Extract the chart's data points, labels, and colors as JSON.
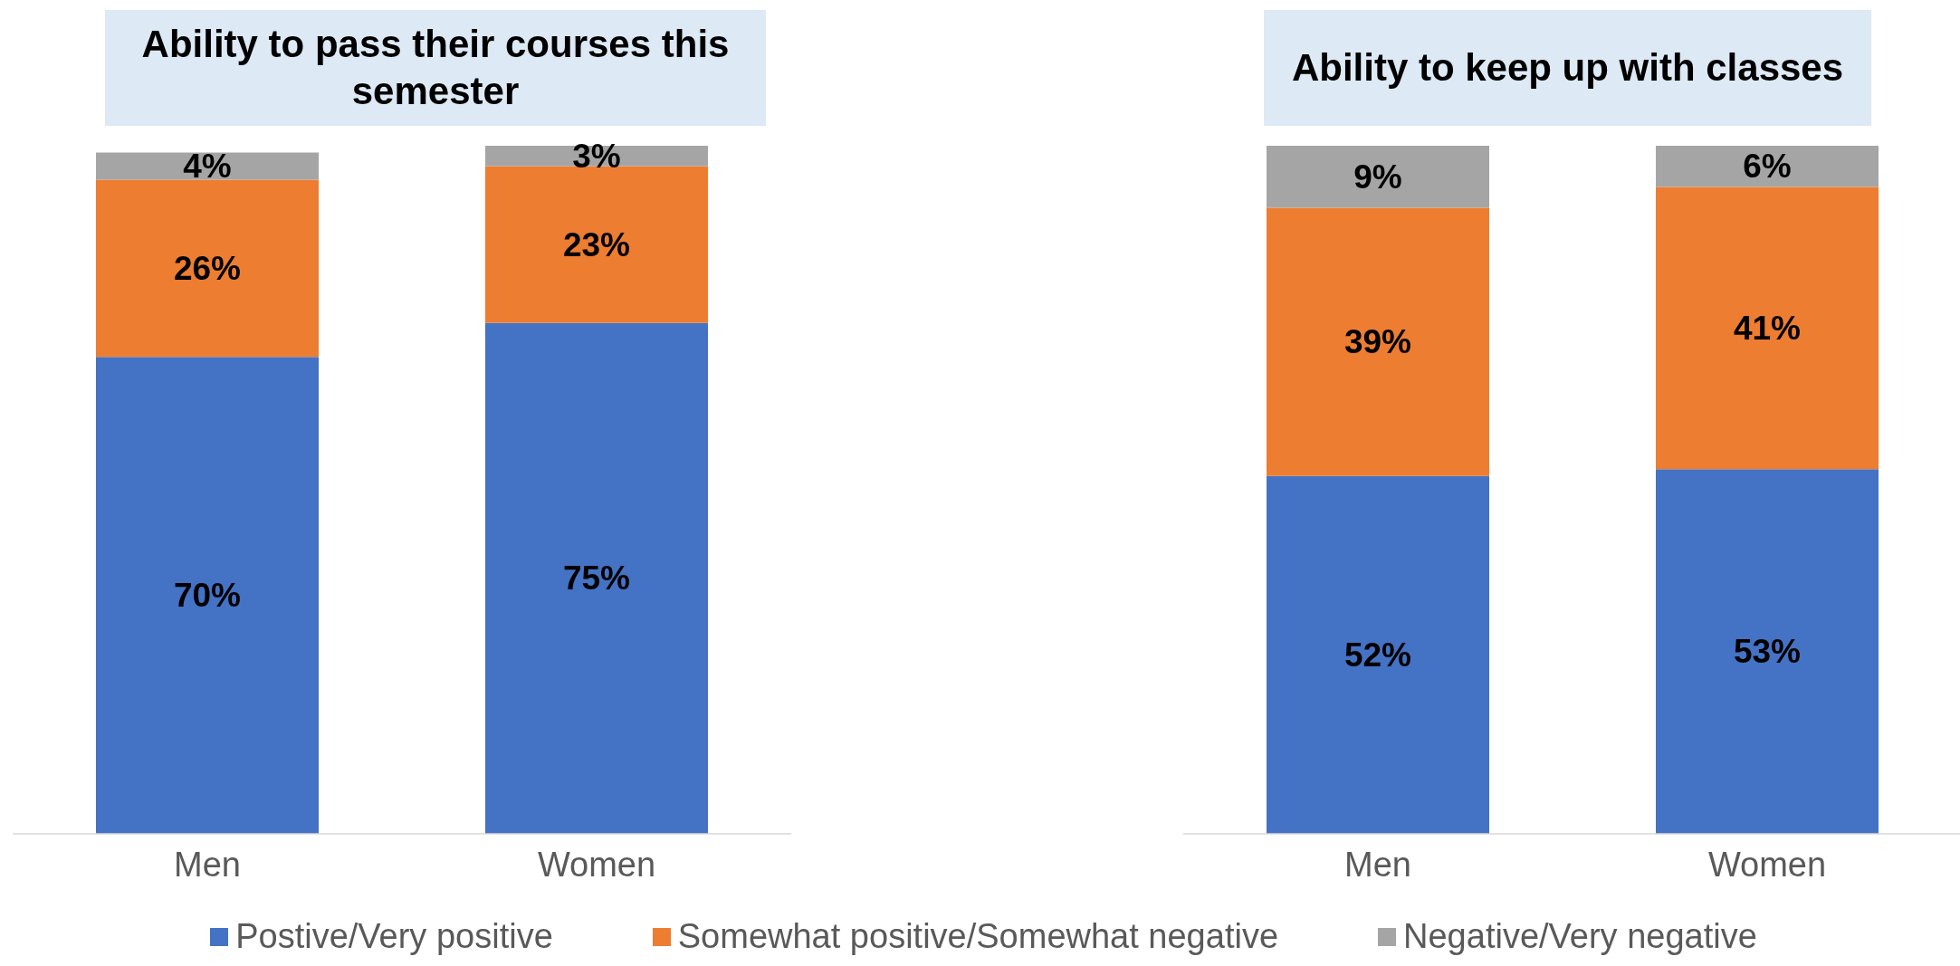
{
  "chart_data": [
    {
      "type": "bar",
      "title": "Ability to pass their courses this semester",
      "categories": [
        "Men",
        "Women"
      ],
      "stacked": true,
      "legend": "bottom",
      "series": [
        {
          "name": "Postive/Very positive",
          "color": "#4472c4",
          "values": [
            70,
            75
          ],
          "value_labels": [
            "70%",
            "75%"
          ]
        },
        {
          "name": "Somewhat positive/Somewhat negative",
          "color": "#ed7d31",
          "values": [
            26,
            23
          ],
          "value_labels": [
            "26%",
            "23%"
          ]
        },
        {
          "name": "Negative/Very negative",
          "color": "#a5a5a5",
          "values": [
            4,
            3
          ],
          "value_labels": [
            "4%",
            "3%"
          ]
        }
      ]
    },
    {
      "type": "bar",
      "title": "Ability to keep up with classes",
      "categories": [
        "Men",
        "Women"
      ],
      "stacked": true,
      "series": [
        {
          "color": "#4472c4",
          "values": [
            52,
            53
          ],
          "value_labels": [
            "52%",
            "53%"
          ]
        },
        {
          "color": "#ed7d31",
          "values": [
            39,
            41
          ],
          "value_labels": [
            "39%",
            "41%"
          ]
        },
        {
          "color": "#a5a5a5",
          "values": [
            9,
            6
          ],
          "value_labels": [
            "9%",
            "6%"
          ]
        }
      ]
    }
  ]
}
